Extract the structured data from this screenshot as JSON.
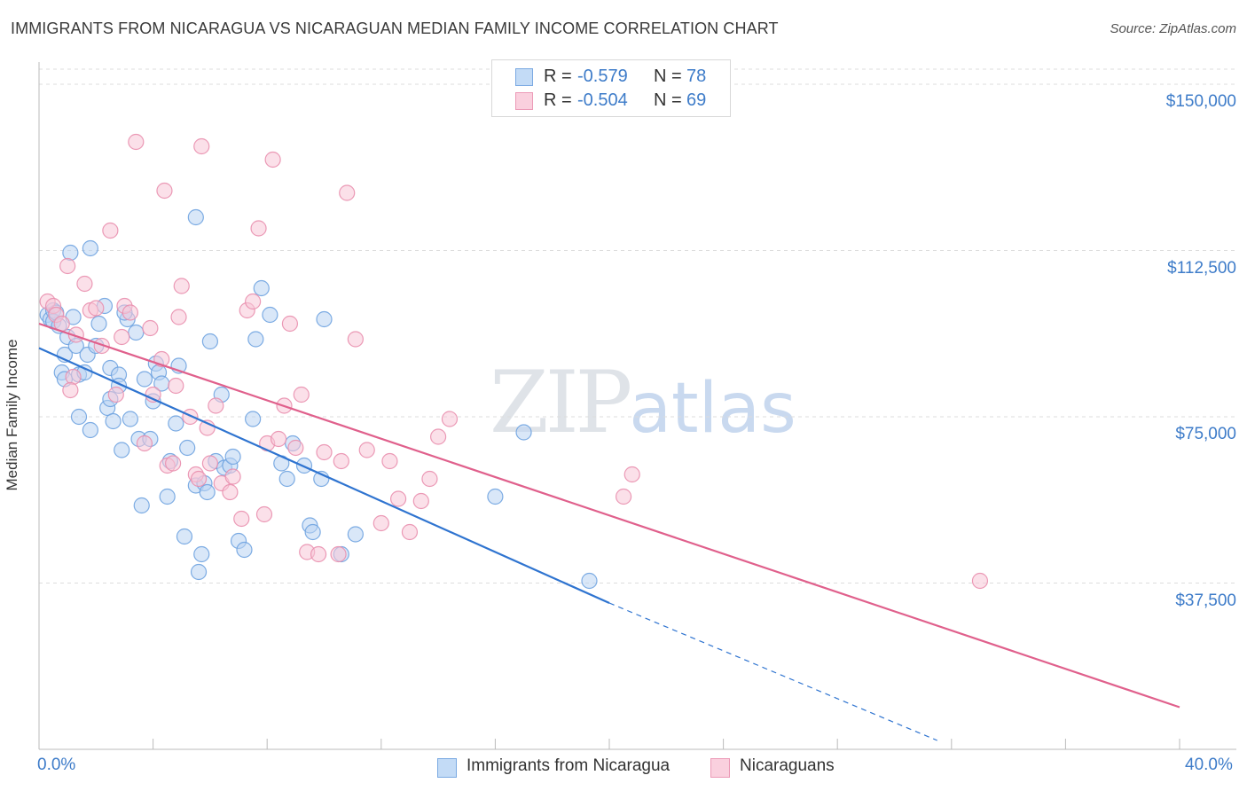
{
  "header": {
    "title": "IMMIGRANTS FROM NICARAGUA VS NICARAGUAN MEDIAN FAMILY INCOME CORRELATION CHART",
    "source": "Source: ZipAtlas.com"
  },
  "watermark": {
    "zip": "ZIP",
    "atlas": "atlas"
  },
  "legend": {
    "rows": [
      {
        "r_label": "R =",
        "r_value": "-0.579",
        "n_label": "N =",
        "n_value": "78",
        "color": "#9ec3ef"
      },
      {
        "r_label": "R =",
        "r_value": "-0.504",
        "n_label": "N =",
        "n_value": "69",
        "color": "#f4b3c9"
      }
    ]
  },
  "chart_data": {
    "type": "scatter",
    "title": "IMMIGRANTS FROM NICARAGUA VS NICARAGUAN MEDIAN FAMILY INCOME CORRELATION CHART",
    "xlabel": "",
    "ylabel": "Median Family Income",
    "xlim": [
      0,
      40
    ],
    "ylim": [
      0,
      155000
    ],
    "x_ticks": [
      "0.0%",
      "40.0%"
    ],
    "y_ticks": [
      {
        "value": 37500,
        "label": "$37,500"
      },
      {
        "value": 75000,
        "label": "$75,000"
      },
      {
        "value": 112500,
        "label": "$112,500"
      },
      {
        "value": 150000,
        "label": "$150,000"
      }
    ],
    "grid": true,
    "legend_position": "bottom",
    "series": [
      {
        "name": "Immigrants from Nicaragua",
        "color": "#6fa3e0",
        "fill": "#b9d3f3",
        "trend": {
          "x0": 0,
          "y0": 90500,
          "x1": 20,
          "y1": 33000,
          "dash_to_x": 31.5,
          "dash_to_y": 2000,
          "color": "#2f74d0"
        },
        "points": [
          [
            0.3,
            98000
          ],
          [
            0.4,
            97000
          ],
          [
            0.5,
            99000
          ],
          [
            0.5,
            96500
          ],
          [
            0.6,
            98500
          ],
          [
            0.8,
            85000
          ],
          [
            0.9,
            89000
          ],
          [
            0.9,
            83500
          ],
          [
            1.0,
            93000
          ],
          [
            1.1,
            112000
          ],
          [
            1.2,
            97500
          ],
          [
            1.3,
            91000
          ],
          [
            1.4,
            84500
          ],
          [
            1.4,
            75000
          ],
          [
            1.6,
            85000
          ],
          [
            1.7,
            89000
          ],
          [
            1.8,
            113000
          ],
          [
            1.8,
            72000
          ],
          [
            2.0,
            91000
          ],
          [
            2.1,
            96000
          ],
          [
            2.3,
            100000
          ],
          [
            2.4,
            77000
          ],
          [
            2.5,
            79000
          ],
          [
            2.5,
            86000
          ],
          [
            2.6,
            74000
          ],
          [
            2.8,
            84500
          ],
          [
            2.8,
            82000
          ],
          [
            2.9,
            67500
          ],
          [
            3.1,
            97000
          ],
          [
            3.2,
            74500
          ],
          [
            3.4,
            94000
          ],
          [
            3.5,
            70000
          ],
          [
            3.6,
            55000
          ],
          [
            3.7,
            83500
          ],
          [
            3.9,
            70000
          ],
          [
            4.0,
            78500
          ],
          [
            4.1,
            87000
          ],
          [
            4.2,
            85000
          ],
          [
            4.3,
            82500
          ],
          [
            4.5,
            57000
          ],
          [
            4.6,
            65000
          ],
          [
            4.8,
            73500
          ],
          [
            4.9,
            86500
          ],
          [
            5.1,
            48000
          ],
          [
            5.2,
            68000
          ],
          [
            5.5,
            59500
          ],
          [
            5.6,
            40000
          ],
          [
            5.7,
            44000
          ],
          [
            5.8,
            60000
          ],
          [
            5.9,
            58000
          ],
          [
            6.0,
            92000
          ],
          [
            6.2,
            65000
          ],
          [
            6.4,
            80000
          ],
          [
            6.5,
            63500
          ],
          [
            6.7,
            64000
          ],
          [
            6.8,
            66000
          ],
          [
            7.0,
            47000
          ],
          [
            7.2,
            45000
          ],
          [
            7.5,
            74500
          ],
          [
            7.6,
            92500
          ],
          [
            7.8,
            104000
          ],
          [
            8.1,
            98000
          ],
          [
            8.5,
            64500
          ],
          [
            8.7,
            61000
          ],
          [
            8.9,
            69000
          ],
          [
            9.3,
            64000
          ],
          [
            9.5,
            50500
          ],
          [
            9.6,
            49000
          ],
          [
            9.9,
            61000
          ],
          [
            10.0,
            97000
          ],
          [
            10.6,
            44000
          ],
          [
            11.1,
            48500
          ],
          [
            5.5,
            120000
          ],
          [
            16.0,
            57000
          ],
          [
            17.0,
            71500
          ],
          [
            19.3,
            38000
          ],
          [
            3.0,
            98500
          ],
          [
            0.7,
            95500
          ]
        ]
      },
      {
        "name": "Nicaraguans",
        "color": "#e98fae",
        "fill": "#f8c6d7",
        "trend": {
          "x0": 0,
          "y0": 96000,
          "x1": 40,
          "y1": 9500,
          "color": "#e0608c"
        },
        "points": [
          [
            0.3,
            101000
          ],
          [
            0.5,
            100000
          ],
          [
            0.6,
            98000
          ],
          [
            0.8,
            96000
          ],
          [
            1.0,
            109000
          ],
          [
            1.2,
            84000
          ],
          [
            1.3,
            93500
          ],
          [
            1.6,
            105000
          ],
          [
            1.8,
            99000
          ],
          [
            2.0,
            99500
          ],
          [
            2.2,
            91000
          ],
          [
            2.5,
            117000
          ],
          [
            2.7,
            80000
          ],
          [
            2.9,
            93000
          ],
          [
            3.0,
            100000
          ],
          [
            3.2,
            98500
          ],
          [
            3.4,
            137000
          ],
          [
            3.7,
            69000
          ],
          [
            3.9,
            95000
          ],
          [
            4.0,
            80000
          ],
          [
            4.3,
            88000
          ],
          [
            4.4,
            126000
          ],
          [
            4.5,
            64000
          ],
          [
            4.7,
            64500
          ],
          [
            4.9,
            97500
          ],
          [
            5.0,
            104500
          ],
          [
            5.3,
            75000
          ],
          [
            5.5,
            62000
          ],
          [
            5.6,
            61000
          ],
          [
            5.7,
            136000
          ],
          [
            5.9,
            72500
          ],
          [
            6.0,
            64500
          ],
          [
            6.2,
            77500
          ],
          [
            6.4,
            60000
          ],
          [
            6.7,
            58000
          ],
          [
            6.8,
            61500
          ],
          [
            7.1,
            52000
          ],
          [
            7.3,
            99000
          ],
          [
            7.5,
            101000
          ],
          [
            7.7,
            117500
          ],
          [
            7.9,
            53000
          ],
          [
            8.0,
            69000
          ],
          [
            8.2,
            133000
          ],
          [
            8.6,
            77500
          ],
          [
            8.8,
            96000
          ],
          [
            9.0,
            68000
          ],
          [
            9.2,
            80000
          ],
          [
            9.4,
            44500
          ],
          [
            9.8,
            44000
          ],
          [
            10.0,
            67000
          ],
          [
            10.6,
            65000
          ],
          [
            10.8,
            125500
          ],
          [
            11.1,
            92500
          ],
          [
            11.5,
            67500
          ],
          [
            12.0,
            51000
          ],
          [
            12.3,
            65000
          ],
          [
            12.6,
            56500
          ],
          [
            13.0,
            49000
          ],
          [
            13.4,
            56000
          ],
          [
            13.7,
            61000
          ],
          [
            14.0,
            70500
          ],
          [
            14.4,
            74500
          ],
          [
            20.5,
            57000
          ],
          [
            20.8,
            62000
          ],
          [
            33.0,
            38000
          ],
          [
            1.1,
            81000
          ],
          [
            4.8,
            82000
          ],
          [
            8.4,
            70000
          ],
          [
            10.5,
            44000
          ]
        ]
      }
    ]
  }
}
